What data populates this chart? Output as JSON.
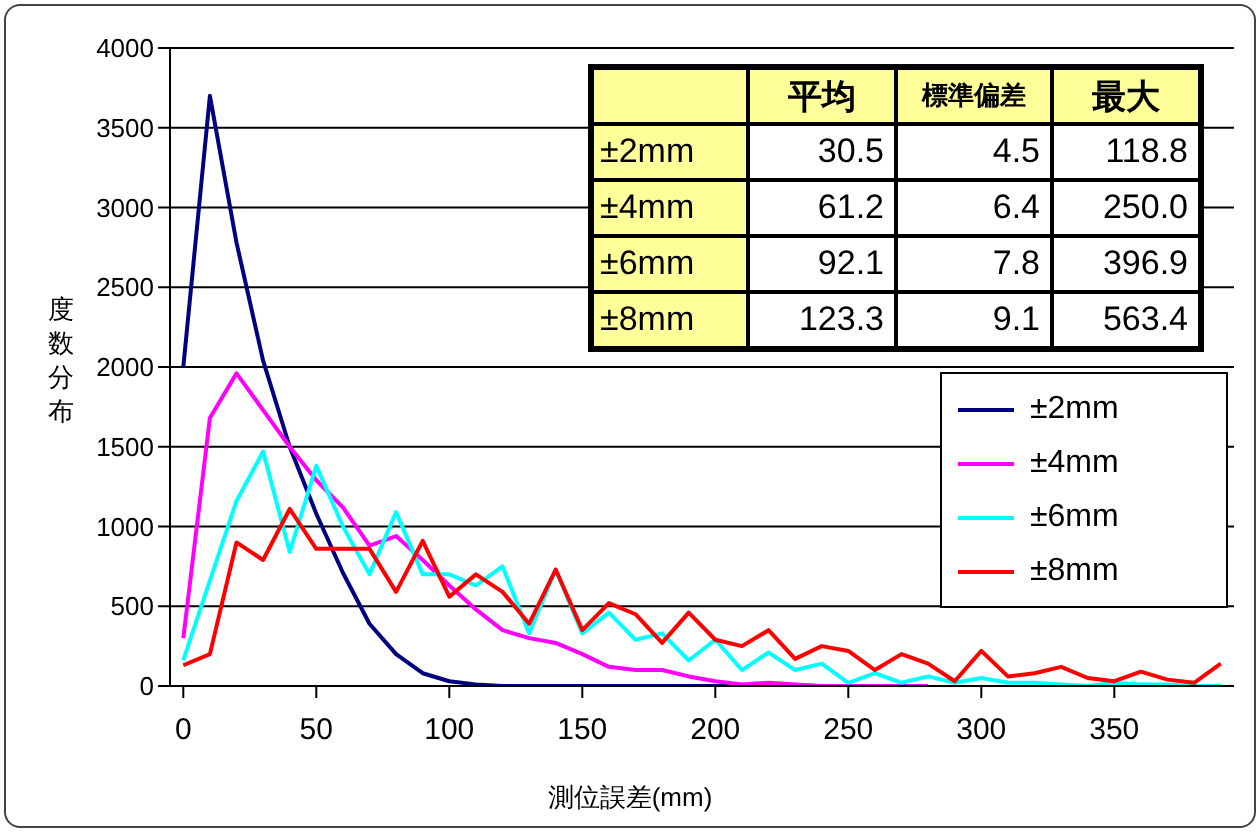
{
  "chart_data": {
    "type": "line",
    "xlabel": "測位誤差(mm)",
    "ylabel": "度数分布",
    "x": [
      0,
      10,
      20,
      30,
      40,
      50,
      60,
      70,
      80,
      90,
      100,
      110,
      120,
      130,
      140,
      150,
      160,
      170,
      180,
      190,
      200,
      210,
      220,
      230,
      240,
      250,
      260,
      270,
      280,
      290,
      300,
      310,
      320,
      330,
      340,
      350,
      360,
      370,
      380,
      390
    ],
    "series": [
      {
        "name": "±2mm",
        "color": "#000080",
        "values": [
          2000,
          3700,
          2780,
          2040,
          1500,
          1080,
          710,
          390,
          200,
          80,
          30,
          10,
          0,
          0,
          0,
          0,
          0,
          0,
          0,
          0,
          0,
          0,
          null,
          null,
          null,
          null,
          null,
          null,
          null,
          null,
          null,
          null,
          null,
          null,
          null,
          null,
          null,
          null,
          null,
          null
        ]
      },
      {
        "name": "±4mm",
        "color": "#ff00ff",
        "values": [
          300,
          1680,
          1960,
          1730,
          1500,
          1290,
          1120,
          880,
          940,
          790,
          630,
          480,
          350,
          300,
          270,
          200,
          120,
          100,
          100,
          60,
          30,
          10,
          20,
          10,
          0,
          0,
          0,
          0,
          0,
          null,
          null,
          null,
          null,
          null,
          null,
          null,
          null,
          null,
          null,
          null
        ]
      },
      {
        "name": "±6mm",
        "color": "#00ffff",
        "values": [
          160,
          660,
          1160,
          1470,
          840,
          1380,
          1000,
          700,
          1090,
          700,
          700,
          630,
          750,
          330,
          730,
          330,
          460,
          290,
          330,
          160,
          290,
          100,
          210,
          100,
          140,
          20,
          80,
          20,
          60,
          20,
          50,
          20,
          20,
          10,
          0,
          20,
          10,
          10,
          0,
          0
        ]
      },
      {
        "name": "±8mm",
        "color": "#ff0000",
        "values": [
          130,
          200,
          900,
          790,
          1110,
          860,
          860,
          860,
          590,
          910,
          560,
          700,
          590,
          390,
          730,
          350,
          520,
          450,
          270,
          460,
          290,
          250,
          350,
          170,
          250,
          220,
          100,
          200,
          140,
          30,
          220,
          60,
          80,
          120,
          50,
          30,
          90,
          40,
          20,
          140
        ]
      }
    ],
    "xlim": [
      -5,
      395
    ],
    "xticks": [
      0,
      50,
      100,
      150,
      200,
      250,
      300,
      350
    ],
    "ylim": [
      0,
      4000
    ],
    "yticks": [
      0,
      500,
      1000,
      1500,
      2000,
      2500,
      3000,
      3500,
      4000
    ],
    "grid": "y",
    "legend": "right",
    "marker": "none",
    "line_style": "solid",
    "annotations": [
      "平均",
      "標準偏差",
      "最大",
      "±2mm",
      "30.5",
      "4.5",
      "118.8",
      "±4mm",
      "61.2",
      "6.4",
      "250.0",
      "±6mm",
      "92.1",
      "7.8",
      "396.9",
      "±8mm",
      "123.3",
      "9.1",
      "563.4"
    ]
  }
}
